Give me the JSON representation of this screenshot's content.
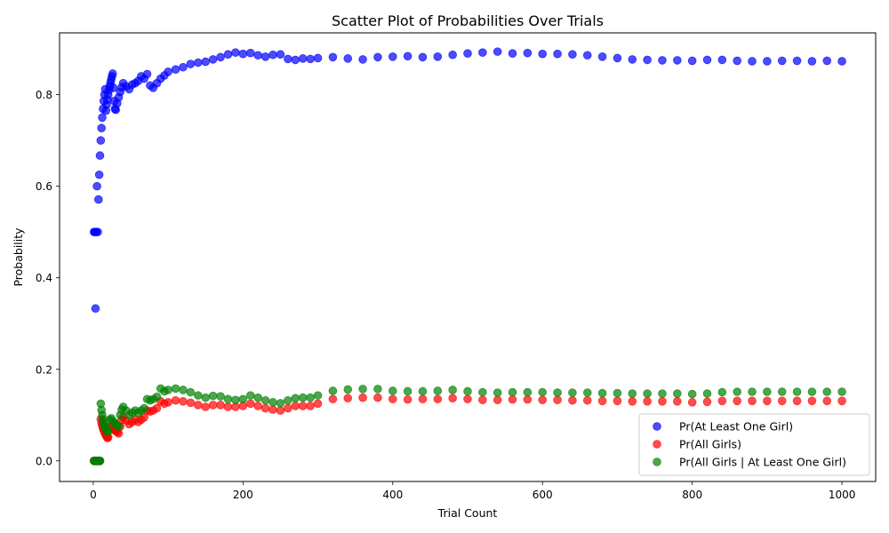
{
  "chart_data": {
    "type": "scatter",
    "title": "Scatter Plot of Probabilities Over Trials",
    "xlabel": "Trial Count",
    "ylabel": "Probability",
    "xlim": [
      -45,
      1045
    ],
    "ylim": [
      -0.045,
      0.935
    ],
    "xticks": [
      0,
      200,
      400,
      600,
      800,
      1000
    ],
    "yticks": [
      0.0,
      0.2,
      0.4,
      0.6,
      0.8
    ],
    "xtick_labels": [
      "0",
      "200",
      "400",
      "600",
      "800",
      "1000"
    ],
    "ytick_labels": [
      "0.0",
      "0.2",
      "0.4",
      "0.6",
      "0.8"
    ],
    "grid": false,
    "legend_position": "lower-right",
    "series": [
      {
        "name": "Pr(At Least One Girl)",
        "color": "#0000ff",
        "points": [
          [
            1,
            0.5
          ],
          [
            2,
            0.5
          ],
          [
            3,
            0.333
          ],
          [
            4,
            0.5
          ],
          [
            5,
            0.6
          ],
          [
            6,
            0.5
          ],
          [
            7,
            0.571
          ],
          [
            8,
            0.625
          ],
          [
            9,
            0.667
          ],
          [
            10,
            0.7
          ],
          [
            11,
            0.727
          ],
          [
            12,
            0.75
          ],
          [
            13,
            0.769
          ],
          [
            14,
            0.786
          ],
          [
            15,
            0.8
          ],
          [
            16,
            0.812
          ],
          [
            17,
            0.765
          ],
          [
            18,
            0.778
          ],
          [
            19,
            0.789
          ],
          [
            20,
            0.8
          ],
          [
            21,
            0.81
          ],
          [
            22,
            0.818
          ],
          [
            23,
            0.826
          ],
          [
            24,
            0.833
          ],
          [
            25,
            0.84
          ],
          [
            26,
            0.846
          ],
          [
            27,
            0.815
          ],
          [
            28,
            0.786
          ],
          [
            29,
            0.769
          ],
          [
            30,
            0.767
          ],
          [
            32,
            0.781
          ],
          [
            34,
            0.794
          ],
          [
            36,
            0.806
          ],
          [
            38,
            0.816
          ],
          [
            40,
            0.825
          ],
          [
            44,
            0.818
          ],
          [
            48,
            0.812
          ],
          [
            52,
            0.822
          ],
          [
            56,
            0.825
          ],
          [
            60,
            0.83
          ],
          [
            64,
            0.84
          ],
          [
            68,
            0.835
          ],
          [
            72,
            0.845
          ],
          [
            76,
            0.82
          ],
          [
            80,
            0.815
          ],
          [
            85,
            0.825
          ],
          [
            90,
            0.835
          ],
          [
            95,
            0.842
          ],
          [
            100,
            0.85
          ],
          [
            110,
            0.855
          ],
          [
            120,
            0.86
          ],
          [
            130,
            0.867
          ],
          [
            140,
            0.87
          ],
          [
            150,
            0.872
          ],
          [
            160,
            0.877
          ],
          [
            170,
            0.882
          ],
          [
            180,
            0.888
          ],
          [
            190,
            0.892
          ],
          [
            200,
            0.889
          ],
          [
            210,
            0.891
          ],
          [
            220,
            0.886
          ],
          [
            230,
            0.883
          ],
          [
            240,
            0.887
          ],
          [
            250,
            0.888
          ],
          [
            260,
            0.878
          ],
          [
            270,
            0.876
          ],
          [
            280,
            0.879
          ],
          [
            290,
            0.878
          ],
          [
            300,
            0.88
          ],
          [
            320,
            0.882
          ],
          [
            340,
            0.879
          ],
          [
            360,
            0.877
          ],
          [
            380,
            0.882
          ],
          [
            400,
            0.883
          ],
          [
            420,
            0.884
          ],
          [
            440,
            0.882
          ],
          [
            460,
            0.883
          ],
          [
            480,
            0.887
          ],
          [
            500,
            0.89
          ],
          [
            520,
            0.892
          ],
          [
            540,
            0.894
          ],
          [
            560,
            0.89
          ],
          [
            580,
            0.891
          ],
          [
            600,
            0.889
          ],
          [
            620,
            0.889
          ],
          [
            640,
            0.888
          ],
          [
            660,
            0.886
          ],
          [
            680,
            0.883
          ],
          [
            700,
            0.88
          ],
          [
            720,
            0.877
          ],
          [
            740,
            0.876
          ],
          [
            760,
            0.875
          ],
          [
            780,
            0.875
          ],
          [
            800,
            0.874
          ],
          [
            820,
            0.876
          ],
          [
            840,
            0.876
          ],
          [
            860,
            0.874
          ],
          [
            880,
            0.873
          ],
          [
            900,
            0.873
          ],
          [
            920,
            0.874
          ],
          [
            940,
            0.874
          ],
          [
            960,
            0.873
          ],
          [
            980,
            0.874
          ],
          [
            1000,
            0.873
          ]
        ]
      },
      {
        "name": "Pr(All Girls)",
        "color": "#ff0000",
        "points": [
          [
            1,
            0.0
          ],
          [
            2,
            0.0
          ],
          [
            3,
            0.0
          ],
          [
            4,
            0.0
          ],
          [
            5,
            0.0
          ],
          [
            6,
            0.0
          ],
          [
            7,
            0.0
          ],
          [
            8,
            0.0
          ],
          [
            9,
            0.0
          ],
          [
            10,
            0.091
          ],
          [
            11,
            0.083
          ],
          [
            12,
            0.077
          ],
          [
            13,
            0.071
          ],
          [
            14,
            0.067
          ],
          [
            15,
            0.062
          ],
          [
            16,
            0.059
          ],
          [
            17,
            0.056
          ],
          [
            18,
            0.053
          ],
          [
            19,
            0.05
          ],
          [
            20,
            0.052
          ],
          [
            22,
            0.072
          ],
          [
            24,
            0.075
          ],
          [
            26,
            0.07
          ],
          [
            28,
            0.068
          ],
          [
            30,
            0.065
          ],
          [
            32,
            0.063
          ],
          [
            34,
            0.06
          ],
          [
            36,
            0.075
          ],
          [
            38,
            0.09
          ],
          [
            40,
            0.095
          ],
          [
            44,
            0.088
          ],
          [
            48,
            0.08
          ],
          [
            52,
            0.085
          ],
          [
            56,
            0.09
          ],
          [
            60,
            0.085
          ],
          [
            64,
            0.09
          ],
          [
            68,
            0.095
          ],
          [
            72,
            0.11
          ],
          [
            76,
            0.108
          ],
          [
            80,
            0.11
          ],
          [
            85,
            0.115
          ],
          [
            90,
            0.13
          ],
          [
            95,
            0.125
          ],
          [
            100,
            0.128
          ],
          [
            110,
            0.132
          ],
          [
            120,
            0.13
          ],
          [
            130,
            0.127
          ],
          [
            140,
            0.122
          ],
          [
            150,
            0.118
          ],
          [
            160,
            0.122
          ],
          [
            170,
            0.122
          ],
          [
            180,
            0.118
          ],
          [
            190,
            0.118
          ],
          [
            200,
            0.12
          ],
          [
            210,
            0.125
          ],
          [
            220,
            0.12
          ],
          [
            230,
            0.115
          ],
          [
            240,
            0.112
          ],
          [
            250,
            0.11
          ],
          [
            260,
            0.115
          ],
          [
            270,
            0.12
          ],
          [
            280,
            0.12
          ],
          [
            290,
            0.12
          ],
          [
            300,
            0.125
          ],
          [
            320,
            0.135
          ],
          [
            340,
            0.137
          ],
          [
            360,
            0.138
          ],
          [
            380,
            0.138
          ],
          [
            400,
            0.135
          ],
          [
            420,
            0.134
          ],
          [
            440,
            0.135
          ],
          [
            460,
            0.135
          ],
          [
            480,
            0.137
          ],
          [
            500,
            0.135
          ],
          [
            520,
            0.133
          ],
          [
            540,
            0.133
          ],
          [
            560,
            0.134
          ],
          [
            580,
            0.134
          ],
          [
            600,
            0.133
          ],
          [
            620,
            0.133
          ],
          [
            640,
            0.132
          ],
          [
            660,
            0.132
          ],
          [
            680,
            0.131
          ],
          [
            700,
            0.131
          ],
          [
            720,
            0.13
          ],
          [
            740,
            0.13
          ],
          [
            760,
            0.13
          ],
          [
            780,
            0.13
          ],
          [
            800,
            0.128
          ],
          [
            820,
            0.129
          ],
          [
            840,
            0.131
          ],
          [
            860,
            0.131
          ],
          [
            880,
            0.131
          ],
          [
            900,
            0.131
          ],
          [
            920,
            0.131
          ],
          [
            940,
            0.131
          ],
          [
            960,
            0.131
          ],
          [
            980,
            0.131
          ],
          [
            1000,
            0.131
          ]
        ]
      },
      {
        "name": "Pr(All Girls | At Least One Girl)",
        "color": "#008000",
        "points": [
          [
            1,
            0.0
          ],
          [
            2,
            0.0
          ],
          [
            3,
            0.0
          ],
          [
            4,
            0.0
          ],
          [
            5,
            0.0
          ],
          [
            6,
            0.0
          ],
          [
            7,
            0.0
          ],
          [
            8,
            0.0
          ],
          [
            9,
            0.0
          ],
          [
            10,
            0.125
          ],
          [
            11,
            0.111
          ],
          [
            12,
            0.1
          ],
          [
            13,
            0.091
          ],
          [
            14,
            0.083
          ],
          [
            15,
            0.077
          ],
          [
            16,
            0.073
          ],
          [
            17,
            0.07
          ],
          [
            18,
            0.067
          ],
          [
            19,
            0.063
          ],
          [
            20,
            0.065
          ],
          [
            22,
            0.09
          ],
          [
            24,
            0.093
          ],
          [
            26,
            0.087
          ],
          [
            28,
            0.084
          ],
          [
            30,
            0.08
          ],
          [
            32,
            0.078
          ],
          [
            34,
            0.075
          ],
          [
            36,
            0.1
          ],
          [
            38,
            0.112
          ],
          [
            40,
            0.118
          ],
          [
            44,
            0.11
          ],
          [
            48,
            0.1
          ],
          [
            52,
            0.105
          ],
          [
            56,
            0.11
          ],
          [
            60,
            0.105
          ],
          [
            64,
            0.11
          ],
          [
            68,
            0.115
          ],
          [
            72,
            0.135
          ],
          [
            76,
            0.132
          ],
          [
            80,
            0.135
          ],
          [
            85,
            0.14
          ],
          [
            90,
            0.158
          ],
          [
            95,
            0.152
          ],
          [
            100,
            0.155
          ],
          [
            110,
            0.158
          ],
          [
            120,
            0.155
          ],
          [
            130,
            0.15
          ],
          [
            140,
            0.143
          ],
          [
            150,
            0.138
          ],
          [
            160,
            0.142
          ],
          [
            170,
            0.141
          ],
          [
            180,
            0.135
          ],
          [
            190,
            0.133
          ],
          [
            200,
            0.135
          ],
          [
            210,
            0.143
          ],
          [
            220,
            0.138
          ],
          [
            230,
            0.132
          ],
          [
            240,
            0.128
          ],
          [
            250,
            0.126
          ],
          [
            260,
            0.132
          ],
          [
            270,
            0.137
          ],
          [
            280,
            0.138
          ],
          [
            290,
            0.138
          ],
          [
            300,
            0.143
          ],
          [
            320,
            0.153
          ],
          [
            340,
            0.156
          ],
          [
            360,
            0.157
          ],
          [
            380,
            0.157
          ],
          [
            400,
            0.153
          ],
          [
            420,
            0.152
          ],
          [
            440,
            0.152
          ],
          [
            460,
            0.153
          ],
          [
            480,
            0.155
          ],
          [
            500,
            0.152
          ],
          [
            520,
            0.15
          ],
          [
            540,
            0.149
          ],
          [
            560,
            0.15
          ],
          [
            580,
            0.15
          ],
          [
            600,
            0.15
          ],
          [
            620,
            0.149
          ],
          [
            640,
            0.149
          ],
          [
            660,
            0.149
          ],
          [
            680,
            0.148
          ],
          [
            700,
            0.148
          ],
          [
            720,
            0.147
          ],
          [
            740,
            0.147
          ],
          [
            760,
            0.147
          ],
          [
            780,
            0.147
          ],
          [
            800,
            0.146
          ],
          [
            820,
            0.147
          ],
          [
            840,
            0.15
          ],
          [
            860,
            0.151
          ],
          [
            880,
            0.151
          ],
          [
            900,
            0.151
          ],
          [
            920,
            0.151
          ],
          [
            940,
            0.151
          ],
          [
            960,
            0.151
          ],
          [
            980,
            0.151
          ],
          [
            1000,
            0.151
          ]
        ]
      }
    ]
  }
}
